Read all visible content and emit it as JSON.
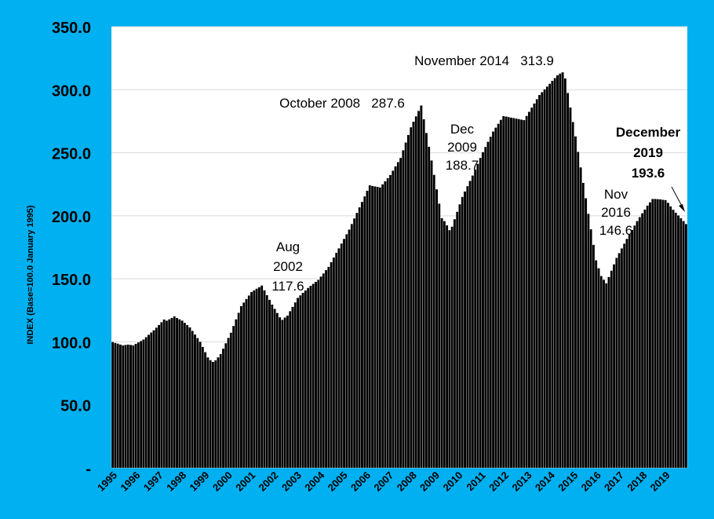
{
  "colors": {
    "frame_background": "#00b0f0",
    "plot_background": "#ffffff",
    "bar_fill": "#000000",
    "bar_stroke": "#ffffff",
    "gridline": "#d9d9d9"
  },
  "chart_data": {
    "type": "bar",
    "title": "",
    "xlabel": "",
    "ylabel": "INDEX (Base=100.0 January 1995)",
    "ylim": [
      0,
      350
    ],
    "y_tick_labels": [
      "-",
      "50.0",
      "100.0",
      "150.0",
      "200.0",
      "250.0",
      "300.0",
      "350.0"
    ],
    "grid": true,
    "legend": "none",
    "x_tick_labels": [
      "1995",
      "1996",
      "1997",
      "1998",
      "1999",
      "2000",
      "2001",
      "2002",
      "2003",
      "2004",
      "2005",
      "2006",
      "2007",
      "2008",
      "2009",
      "2010",
      "2011",
      "2012",
      "2013",
      "2014",
      "2015",
      "2016",
      "2017",
      "2018",
      "2019"
    ],
    "frequency": "monthly",
    "start": "January 1995",
    "end": "December 2019",
    "values": [
      100.0,
      99.3,
      98.7,
      98.0,
      97.3,
      97.7,
      98.0,
      97.7,
      97.3,
      98.5,
      99.7,
      100.8,
      102.0,
      103.8,
      105.7,
      107.5,
      109.3,
      111.4,
      113.5,
      115.7,
      117.8,
      116.9,
      118.0,
      119.1,
      120.3,
      119.0,
      118.0,
      117.0,
      115.2,
      113.4,
      111.6,
      108.8,
      105.9,
      103.1,
      100.2,
      96.1,
      91.9,
      87.8,
      85.6,
      84.2,
      85.5,
      87.8,
      90.5,
      94.7,
      99.0,
      103.2,
      107.4,
      112.7,
      118.0,
      123.2,
      128.5,
      131.3,
      134.1,
      136.9,
      139.7,
      141.0,
      142.3,
      143.5,
      144.8,
      141.0,
      137.2,
      133.5,
      129.7,
      126.3,
      123.0,
      119.6,
      117.6,
      119.4,
      120.9,
      124.4,
      127.9,
      131.4,
      135.0,
      137.0,
      139.0,
      140.9,
      142.9,
      144.5,
      146.1,
      147.7,
      149.3,
      151.9,
      154.4,
      157.0,
      159.6,
      163.3,
      167.0,
      170.7,
      174.3,
      178.1,
      181.8,
      185.5,
      189.2,
      193.6,
      198.0,
      202.4,
      206.8,
      211.1,
      215.5,
      219.9,
      224.3,
      223.8,
      223.4,
      223.0,
      222.6,
      225.1,
      227.5,
      230.0,
      232.5,
      235.9,
      239.3,
      242.7,
      246.0,
      252.1,
      258.2,
      264.2,
      270.3,
      274.7,
      279.0,
      283.3,
      287.6,
      276.7,
      265.8,
      254.9,
      244.0,
      232.6,
      221.1,
      209.7,
      198.2,
      195.9,
      192.5,
      188.7,
      191.5,
      197.4,
      203.3,
      209.2,
      215.1,
      219.4,
      223.6,
      227.8,
      232.0,
      236.7,
      241.3,
      246.0,
      250.6,
      254.7,
      258.8,
      262.8,
      266.9,
      270.0,
      273.1,
      276.2,
      279.2,
      278.8,
      278.4,
      278.0,
      277.6,
      277.2,
      276.8,
      276.4,
      276.0,
      279.3,
      282.6,
      285.9,
      289.2,
      292.6,
      295.9,
      298.1,
      300.4,
      302.6,
      304.8,
      307.1,
      309.3,
      311.5,
      312.9,
      313.9,
      309.0,
      297.5,
      286.0,
      274.5,
      263.1,
      250.8,
      238.5,
      226.2,
      214.0,
      201.7,
      189.4,
      177.1,
      164.8,
      158.5,
      152.3,
      149.4,
      146.6,
      151.6,
      156.6,
      161.6,
      166.7,
      170.5,
      174.2,
      178.0,
      181.8,
      185.3,
      188.9,
      192.4,
      195.9,
      199.0,
      202.1,
      205.1,
      208.2,
      210.8,
      213.4,
      213.5,
      213.3,
      213.1,
      212.8,
      212.6,
      210.4,
      207.6,
      204.9,
      202.5,
      200.4,
      198.2,
      195.9,
      193.6
    ]
  },
  "annotations": [
    {
      "id": "aug-2002",
      "lines": [
        "Aug",
        "2002",
        "117.6"
      ],
      "bold": false
    },
    {
      "id": "oct-2008",
      "lines": [
        "October 2008   287.6"
      ],
      "bold": false
    },
    {
      "id": "nov-2014",
      "lines": [
        "November 2014   313.9"
      ],
      "bold": false
    },
    {
      "id": "dec-2009",
      "lines": [
        "Dec",
        "2009",
        "188.7"
      ],
      "bold": false
    },
    {
      "id": "nov-2016",
      "lines": [
        "Nov",
        "2016",
        "146.6"
      ],
      "bold": false
    },
    {
      "id": "dec-2019",
      "lines": [
        "December",
        "2019",
        "193.6"
      ],
      "bold": true
    }
  ]
}
